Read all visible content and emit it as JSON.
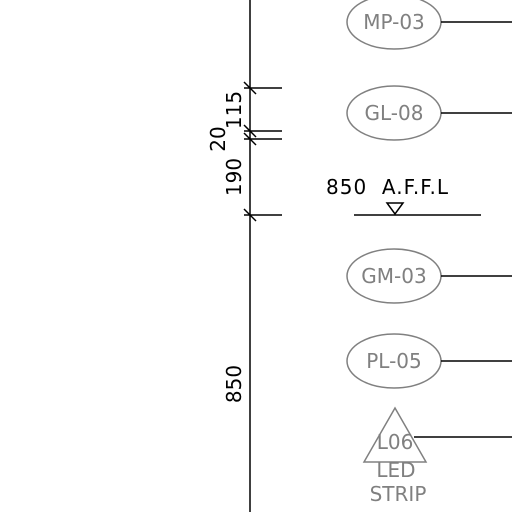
{
  "dimensions": {
    "d115": "115",
    "d20": "20",
    "d190": "190",
    "d850": "850"
  },
  "level": {
    "label": "850  A.F.F.L"
  },
  "tags": {
    "mp03": "MP-03",
    "gl08": "GL-08",
    "gm03": "GM-03",
    "pl05": "PL-05",
    "l06": "L06",
    "led_line1": "LED",
    "led_line2": "STRIP"
  },
  "colors": {
    "linework": "#000000",
    "tag_outline": "#808080"
  }
}
